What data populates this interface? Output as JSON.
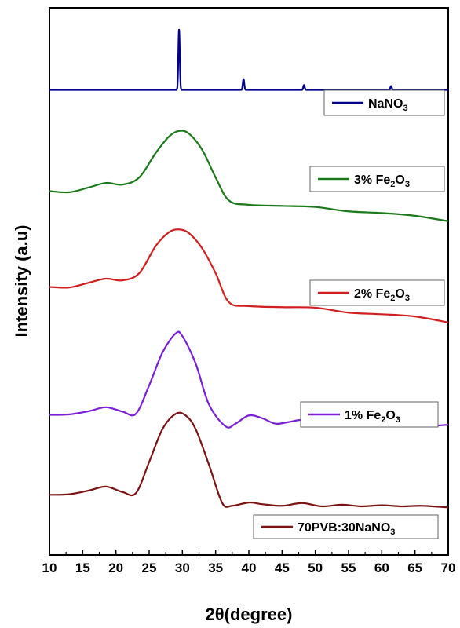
{
  "chart_data": {
    "type": "line",
    "xlabel": "2θ(degree)",
    "ylabel": "Intensity (a.u)",
    "xlim": [
      10,
      70
    ],
    "xticks": [
      10,
      15,
      20,
      25,
      30,
      35,
      40,
      45,
      50,
      55,
      60,
      65,
      70
    ],
    "tick_labels": [
      "10",
      "15",
      "20",
      "25",
      "30",
      "35",
      "40",
      "45",
      "50",
      "55",
      "60",
      "65",
      "70"
    ],
    "y_tick_labels": "none",
    "grid": false,
    "legend_placement": "inline-right-of-each-curve",
    "series": [
      {
        "name": "NaNO3",
        "legend": {
          "main": "NaNO",
          "sub": "3"
        },
        "color": "#00008b",
        "baseline": 0.85,
        "peaks": [
          {
            "x": 29.5,
            "height": 0.11,
            "width": 0.15
          },
          {
            "x": 39.2,
            "height": 0.02,
            "width": 0.15
          },
          {
            "x": 48.3,
            "height": 0.009,
            "width": 0.15
          },
          {
            "x": 61.4,
            "height": 0.007,
            "width": 0.15
          }
        ]
      },
      {
        "name": "3% Fe2O3",
        "legend": {
          "main": "3% Fe",
          "sub": "2",
          "mid": "O",
          "sub2": "3"
        },
        "color": "#1a7a1a",
        "baseline": 0.665,
        "points": [
          [
            10,
            0.665
          ],
          [
            13,
            0.663
          ],
          [
            16,
            0.672
          ],
          [
            18.5,
            0.68
          ],
          [
            21,
            0.677
          ],
          [
            23.5,
            0.69
          ],
          [
            26,
            0.735
          ],
          [
            28,
            0.765
          ],
          [
            29.5,
            0.775
          ],
          [
            31,
            0.77
          ],
          [
            33,
            0.74
          ],
          [
            35,
            0.69
          ],
          [
            37,
            0.648
          ],
          [
            40,
            0.64
          ],
          [
            45,
            0.638
          ],
          [
            50,
            0.636
          ],
          [
            55,
            0.628
          ],
          [
            60,
            0.625
          ],
          [
            65,
            0.62
          ],
          [
            70,
            0.61
          ]
        ]
      },
      {
        "name": "2% Fe2O3",
        "legend": {
          "main": "2% Fe",
          "sub": "2",
          "mid": "O",
          "sub2": "3"
        },
        "color": "#d11f1f",
        "baseline": 0.49,
        "points": [
          [
            10,
            0.49
          ],
          [
            13,
            0.489
          ],
          [
            16,
            0.498
          ],
          [
            18.5,
            0.505
          ],
          [
            21,
            0.502
          ],
          [
            23.5,
            0.515
          ],
          [
            26,
            0.565
          ],
          [
            28,
            0.59
          ],
          [
            29.5,
            0.595
          ],
          [
            31,
            0.588
          ],
          [
            33,
            0.56
          ],
          [
            35,
            0.515
          ],
          [
            37,
            0.462
          ],
          [
            40,
            0.455
          ],
          [
            45,
            0.453
          ],
          [
            50,
            0.452
          ],
          [
            55,
            0.443
          ],
          [
            60,
            0.44
          ],
          [
            65,
            0.436
          ],
          [
            70,
            0.425
          ]
        ]
      },
      {
        "name": "1% Fe2O3",
        "legend": {
          "main": "1% Fe",
          "sub": "2",
          "mid": "O",
          "sub2": "3"
        },
        "color": "#7a1fd6",
        "baseline": 0.256,
        "points": [
          [
            10,
            0.256
          ],
          [
            13,
            0.257
          ],
          [
            16,
            0.263
          ],
          [
            18.5,
            0.27
          ],
          [
            21,
            0.262
          ],
          [
            23,
            0.258
          ],
          [
            25,
            0.31
          ],
          [
            27,
            0.37
          ],
          [
            29,
            0.405
          ],
          [
            30,
            0.4
          ],
          [
            32,
            0.35
          ],
          [
            34,
            0.275
          ],
          [
            36.5,
            0.235
          ],
          [
            38,
            0.24
          ],
          [
            40,
            0.255
          ],
          [
            42,
            0.25
          ],
          [
            44,
            0.24
          ],
          [
            46,
            0.243
          ],
          [
            48,
            0.247
          ],
          [
            50,
            0.243
          ],
          [
            52,
            0.238
          ],
          [
            55,
            0.242
          ],
          [
            58,
            0.241
          ],
          [
            61,
            0.242
          ],
          [
            64,
            0.238
          ],
          [
            67,
            0.236
          ],
          [
            70,
            0.238
          ]
        ]
      },
      {
        "name": "70PVB:30NaNO3",
        "legend": {
          "main": "70PVB:30NaNO",
          "sub": "3"
        },
        "color": "#7a1414",
        "baseline": 0.11,
        "points": [
          [
            10,
            0.11
          ],
          [
            13,
            0.111
          ],
          [
            16,
            0.118
          ],
          [
            18.5,
            0.125
          ],
          [
            21,
            0.115
          ],
          [
            23,
            0.113
          ],
          [
            25,
            0.17
          ],
          [
            27,
            0.23
          ],
          [
            29,
            0.258
          ],
          [
            30.5,
            0.255
          ],
          [
            32,
            0.23
          ],
          [
            34,
            0.165
          ],
          [
            36,
            0.095
          ],
          [
            37.5,
            0.09
          ],
          [
            40,
            0.096
          ],
          [
            42,
            0.093
          ],
          [
            45,
            0.09
          ],
          [
            48,
            0.095
          ],
          [
            51,
            0.089
          ],
          [
            54,
            0.092
          ],
          [
            57,
            0.089
          ],
          [
            60,
            0.091
          ],
          [
            63,
            0.089
          ],
          [
            66,
            0.09
          ],
          [
            70,
            0.087
          ]
        ]
      }
    ]
  }
}
